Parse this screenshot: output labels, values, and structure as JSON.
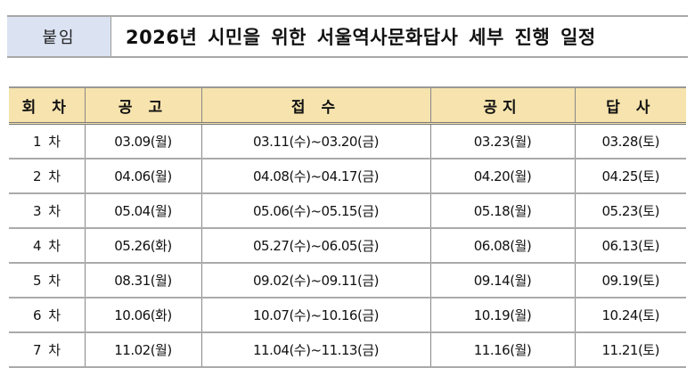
{
  "header": {
    "label": "붙임",
    "title": "2026년 시민을 위한 서울역사문화답사 세부 진행 일정"
  },
  "table": {
    "columns": [
      "회 차",
      "공 고",
      "접 수",
      "공지",
      "답 사"
    ],
    "rows": [
      [
        "1 차",
        "03.09(월)",
        "03.11(수)~03.20(금)",
        "03.23(월)",
        "03.28(토)"
      ],
      [
        "2 차",
        "04.06(월)",
        "04.08(수)~04.17(금)",
        "04.20(월)",
        "04.25(토)"
      ],
      [
        "3 차",
        "05.04(월)",
        "05.06(수)~05.15(금)",
        "05.18(월)",
        "05.23(토)"
      ],
      [
        "4 차",
        "05.26(화)",
        "05.27(수)~06.05(금)",
        "06.08(월)",
        "06.13(토)"
      ],
      [
        "5 차",
        "08.31(월)",
        "09.02(수)~09.11(금)",
        "09.14(월)",
        "09.19(토)"
      ],
      [
        "6 차",
        "10.06(화)",
        "10.07(수)~10.16(금)",
        "10.19(월)",
        "10.24(토)"
      ],
      [
        "7 차",
        "11.02(월)",
        "11.04(수)~11.13(금)",
        "11.16(월)",
        "11.21(토)"
      ]
    ]
  },
  "colors": {
    "label_bg": "#dbe3f3",
    "table_header_bg": "#f6e3ad"
  }
}
